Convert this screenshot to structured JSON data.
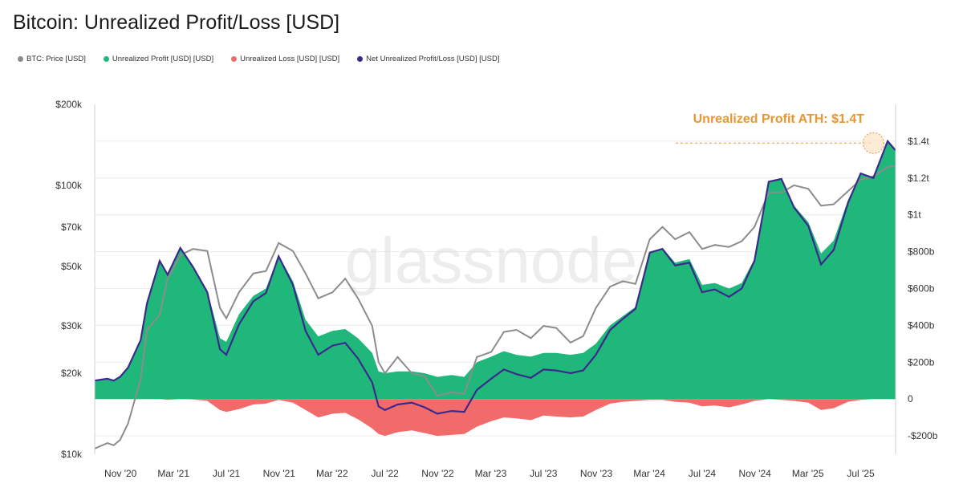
{
  "chart_data": {
    "type": "area",
    "title": "Bitcoin: Unrealized Profit/Loss [USD]",
    "watermark": "glassnode",
    "legend": [
      {
        "name": "BTC: Price [USD]",
        "color": "#8c8c8c"
      },
      {
        "name": "Unrealized Profit [USD] [USD]",
        "color": "#1fb87a"
      },
      {
        "name": "Unrealized Loss [USD] [USD]",
        "color": "#f26b6b"
      },
      {
        "name": "Net Unrealized Profit/Loss [USD] [USD]",
        "color": "#3b2a8c"
      }
    ],
    "left_axis": {
      "scale": "log",
      "range": [
        10000,
        200000
      ],
      "ticks": [
        10000,
        20000,
        30000,
        50000,
        70000,
        100000,
        200000
      ],
      "tick_labels": [
        "$10k",
        "$20k",
        "$30k",
        "$50k",
        "$70k",
        "$100k",
        "$200k"
      ]
    },
    "right_axis": {
      "scale": "linear",
      "range": [
        -300,
        1600
      ],
      "unit": "billion USD",
      "ticks": [
        -200,
        0,
        200,
        400,
        600,
        800,
        1000,
        1200,
        1400
      ],
      "tick_labels": [
        "-$200b",
        "0",
        "$200b",
        "$400b",
        "$600b",
        "$800b",
        "$1t",
        "$1.2t",
        "$1.4t"
      ]
    },
    "x_axis": {
      "range": [
        2020.67,
        2025.72
      ],
      "ticks": [
        2020.833,
        2021.167,
        2021.5,
        2021.833,
        2022.167,
        2022.5,
        2022.833,
        2023.167,
        2023.5,
        2023.833,
        2024.167,
        2024.5,
        2024.833,
        2025.167,
        2025.5
      ],
      "tick_labels": [
        "Nov '20",
        "Mar '21",
        "Jul '21",
        "Nov '21",
        "Mar '22",
        "Jul '22",
        "Nov '22",
        "Mar '23",
        "Jul '23",
        "Nov '23",
        "Mar '24",
        "Jul '24",
        "Nov '24",
        "Mar '25",
        "Jul '25"
      ]
    },
    "annotation": {
      "text": "Unrealized Profit ATH: $1.4T",
      "x": 2025.58,
      "y": 1390,
      "color": "#e8962f"
    },
    "series": [
      {
        "name": "BTC: Price [USD]",
        "axis": "left",
        "color": "#8c8c8c",
        "x": [
          2020.67,
          2020.75,
          2020.79,
          2020.83,
          2020.88,
          2020.96,
          2021.0,
          2021.08,
          2021.13,
          2021.21,
          2021.29,
          2021.38,
          2021.46,
          2021.5,
          2021.58,
          2021.67,
          2021.75,
          2021.83,
          2021.92,
          2022.0,
          2022.08,
          2022.17,
          2022.25,
          2022.33,
          2022.42,
          2022.46,
          2022.5,
          2022.58,
          2022.67,
          2022.75,
          2022.83,
          2022.92,
          2023.0,
          2023.08,
          2023.17,
          2023.25,
          2023.33,
          2023.42,
          2023.5,
          2023.58,
          2023.67,
          2023.75,
          2023.83,
          2023.92,
          2024.0,
          2024.08,
          2024.17,
          2024.25,
          2024.33,
          2024.42,
          2024.5,
          2024.58,
          2024.67,
          2024.75,
          2024.83,
          2024.92,
          2025.0,
          2025.08,
          2025.17,
          2025.25,
          2025.33,
          2025.42,
          2025.5,
          2025.58,
          2025.67,
          2025.72
        ],
        "y": [
          10500,
          11000,
          10800,
          11300,
          13000,
          19000,
          29000,
          33000,
          45000,
          55000,
          58000,
          57000,
          35000,
          32000,
          40000,
          47000,
          48000,
          61000,
          57000,
          47000,
          38000,
          40000,
          45000,
          38000,
          30000,
          22000,
          20000,
          23000,
          20000,
          19500,
          16500,
          17000,
          16800,
          23000,
          24000,
          28500,
          29000,
          27000,
          30000,
          29500,
          26000,
          27500,
          35000,
          42000,
          44000,
          43000,
          63000,
          70000,
          63000,
          67000,
          58000,
          60000,
          59000,
          62000,
          70000,
          94000,
          94000,
          100000,
          97000,
          84000,
          85000,
          95000,
          105000,
          108000,
          117000,
          118000
        ]
      },
      {
        "name": "Unrealized Profit [USD] [USD]",
        "axis": "right",
        "color": "#1fb87a",
        "x": [
          2020.67,
          2020.75,
          2020.79,
          2020.83,
          2020.88,
          2020.96,
          2021.0,
          2021.08,
          2021.13,
          2021.21,
          2021.29,
          2021.38,
          2021.46,
          2021.5,
          2021.58,
          2021.67,
          2021.75,
          2021.83,
          2021.92,
          2022.0,
          2022.08,
          2022.17,
          2022.25,
          2022.33,
          2022.42,
          2022.46,
          2022.5,
          2022.58,
          2022.67,
          2022.75,
          2022.83,
          2022.92,
          2023.0,
          2023.08,
          2023.17,
          2023.25,
          2023.33,
          2023.42,
          2023.5,
          2023.58,
          2023.67,
          2023.75,
          2023.83,
          2023.92,
          2024.0,
          2024.08,
          2024.17,
          2024.25,
          2024.33,
          2024.42,
          2024.5,
          2024.58,
          2024.67,
          2024.75,
          2024.83,
          2024.92,
          2025.0,
          2025.08,
          2025.17,
          2025.25,
          2025.33,
          2025.42,
          2025.5,
          2025.58,
          2025.67,
          2025.72
        ],
        "y": [
          100,
          110,
          100,
          120,
          170,
          320,
          520,
          750,
          680,
          820,
          720,
          590,
          330,
          310,
          460,
          560,
          600,
          780,
          640,
          430,
          340,
          370,
          380,
          330,
          250,
          150,
          140,
          150,
          150,
          140,
          120,
          130,
          120,
          200,
          230,
          260,
          240,
          230,
          250,
          250,
          240,
          250,
          300,
          400,
          450,
          500,
          800,
          820,
          740,
          760,
          620,
          630,
          600,
          630,
          760,
          1180,
          1200,
          1050,
          960,
          790,
          860,
          1080,
          1230,
          1200,
          1400,
          1350
        ]
      },
      {
        "name": "Unrealized Loss [USD] [USD]",
        "axis": "right",
        "color": "#f26b6b",
        "x": [
          2020.67,
          2020.75,
          2020.79,
          2020.83,
          2020.88,
          2020.96,
          2021.0,
          2021.08,
          2021.13,
          2021.21,
          2021.29,
          2021.38,
          2021.46,
          2021.5,
          2021.58,
          2021.67,
          2021.75,
          2021.83,
          2021.92,
          2022.0,
          2022.08,
          2022.17,
          2022.25,
          2022.33,
          2022.42,
          2022.46,
          2022.5,
          2022.58,
          2022.67,
          2022.75,
          2022.83,
          2022.92,
          2023.0,
          2023.08,
          2023.17,
          2023.25,
          2023.33,
          2023.42,
          2023.5,
          2023.58,
          2023.67,
          2023.75,
          2023.83,
          2023.92,
          2024.0,
          2024.08,
          2024.17,
          2024.25,
          2024.33,
          2024.42,
          2024.5,
          2024.58,
          2024.67,
          2024.75,
          2024.83,
          2024.92,
          2025.0,
          2025.08,
          2025.17,
          2025.25,
          2025.33,
          2025.42,
          2025.5,
          2025.58,
          2025.67,
          2025.72
        ],
        "y": [
          0,
          0,
          0,
          0,
          0,
          0,
          0,
          0,
          -5,
          0,
          -3,
          -10,
          -60,
          -70,
          -55,
          -30,
          -25,
          -5,
          -20,
          -60,
          -100,
          -80,
          -75,
          -110,
          -160,
          -190,
          -200,
          -180,
          -170,
          -185,
          -200,
          -195,
          -190,
          -150,
          -120,
          -100,
          -105,
          -115,
          -90,
          -95,
          -100,
          -95,
          -60,
          -25,
          -15,
          -10,
          -5,
          -5,
          -15,
          -20,
          -40,
          -35,
          -45,
          -30,
          -10,
          0,
          -5,
          -10,
          -20,
          -60,
          -50,
          -15,
          -5,
          0,
          0,
          0
        ]
      },
      {
        "name": "Net Unrealized Profit/Loss [USD] [USD]",
        "axis": "right",
        "color": "#3b2a8c",
        "x": [
          2020.67,
          2020.75,
          2020.79,
          2020.83,
          2020.88,
          2020.96,
          2021.0,
          2021.08,
          2021.13,
          2021.21,
          2021.29,
          2021.38,
          2021.46,
          2021.5,
          2021.58,
          2021.67,
          2021.75,
          2021.83,
          2021.92,
          2022.0,
          2022.08,
          2022.17,
          2022.25,
          2022.33,
          2022.42,
          2022.46,
          2022.5,
          2022.58,
          2022.67,
          2022.75,
          2022.83,
          2022.92,
          2023.0,
          2023.08,
          2023.17,
          2023.25,
          2023.33,
          2023.42,
          2023.5,
          2023.58,
          2023.67,
          2023.75,
          2023.83,
          2023.92,
          2024.0,
          2024.08,
          2024.17,
          2024.25,
          2024.33,
          2024.42,
          2024.5,
          2024.58,
          2024.67,
          2024.75,
          2024.83,
          2024.92,
          2025.0,
          2025.08,
          2025.17,
          2025.25,
          2025.33,
          2025.42,
          2025.5,
          2025.58,
          2025.67,
          2025.72
        ],
        "y": [
          100,
          110,
          100,
          120,
          170,
          320,
          520,
          750,
          675,
          820,
          717,
          580,
          270,
          240,
          405,
          530,
          575,
          775,
          620,
          370,
          240,
          290,
          305,
          220,
          90,
          -40,
          -60,
          -30,
          -20,
          -45,
          -80,
          -65,
          -70,
          50,
          110,
          160,
          135,
          115,
          160,
          155,
          140,
          155,
          240,
          375,
          435,
          490,
          795,
          815,
          725,
          740,
          580,
          595,
          555,
          600,
          750,
          1180,
          1195,
          1040,
          940,
          730,
          810,
          1065,
          1225,
          1200,
          1400,
          1350
        ]
      }
    ]
  }
}
